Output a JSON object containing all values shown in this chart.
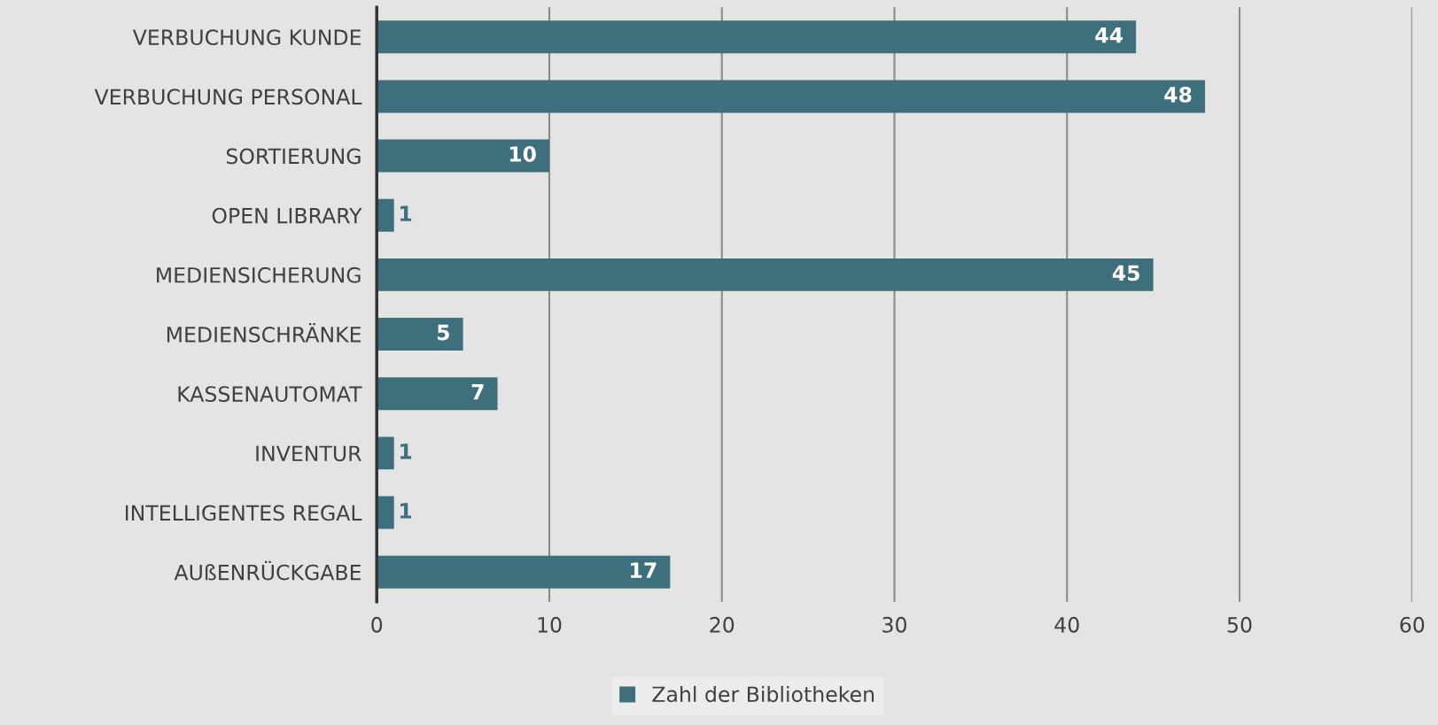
{
  "chart_data": {
    "type": "bar",
    "orientation": "horizontal",
    "categories": [
      "VERBUCHUNG KUNDE",
      "VERBUCHUNG PERSONAL",
      "SORTIERUNG",
      "OPEN LIBRARY",
      "MEDIENSICHERUNG",
      "MEDIENSCHRÄNKE",
      "KASSENAUTOMAT",
      "INVENTUR",
      "INTELLIGENTES REGAL",
      "AUßENRÜCKGABE"
    ],
    "series": [
      {
        "name": "Zahl der Bibliotheken",
        "color": "#3e6f7c",
        "values": [
          44,
          48,
          10,
          1,
          45,
          5,
          7,
          1,
          1,
          17
        ]
      }
    ],
    "xlim": [
      0,
      60
    ],
    "xticks": [
      0,
      10,
      20,
      30,
      40,
      50,
      60
    ],
    "grid": "x",
    "legend": "bottom",
    "data_labels": true
  }
}
